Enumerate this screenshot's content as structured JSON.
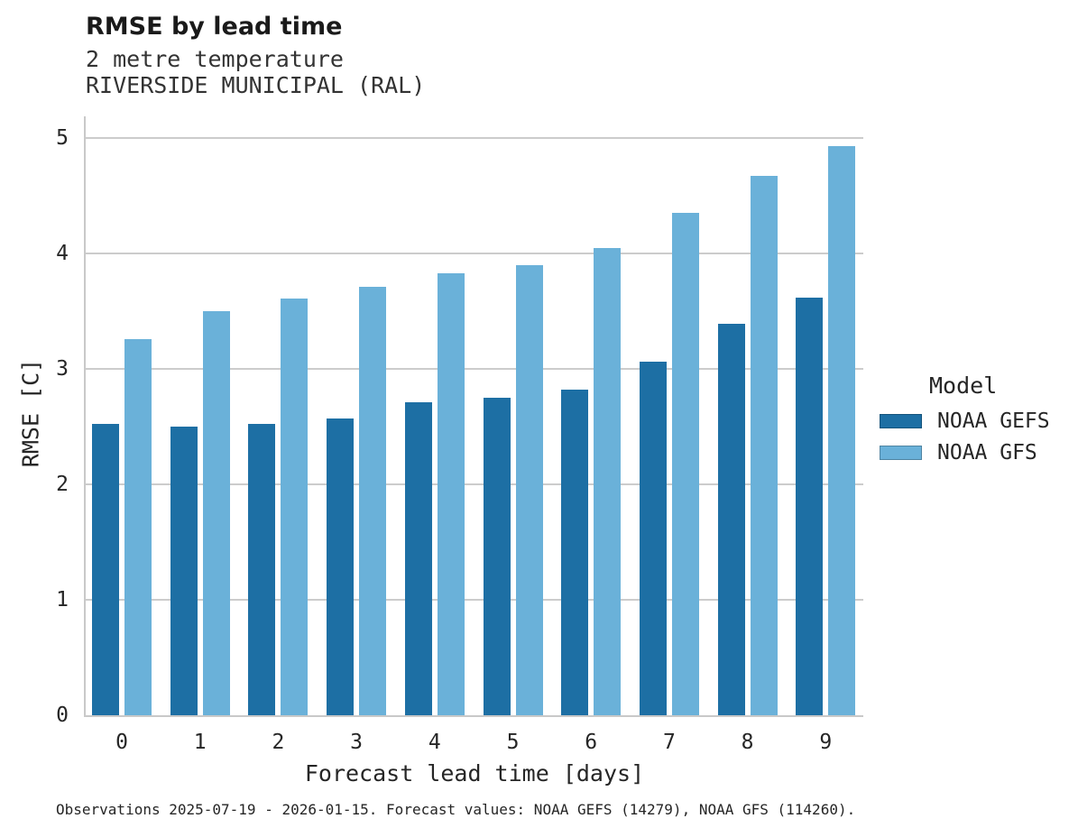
{
  "header": {
    "title": "RMSE by lead time",
    "subtitle1": "2 metre temperature",
    "subtitle2": "RIVERSIDE MUNICIPAL (RAL)"
  },
  "legend": {
    "title": "Model",
    "entries": [
      "NOAA GEFS",
      "NOAA GFS"
    ]
  },
  "caption": "Observations 2025-07-19 - 2026-01-15. Forecast values: NOAA GEFS (14279), NOAA GFS (114260).",
  "colors": {
    "gefs_dark_blue": "#1d6fa4",
    "gfs_light_blue": "#6ab1d9",
    "gridline_gray": "#cccccc",
    "text": "#262626"
  },
  "chart_data": {
    "type": "bar",
    "title": "RMSE by lead time",
    "subtitle": [
      "2 metre temperature",
      "RIVERSIDE MUNICIPAL (RAL)"
    ],
    "categories": [
      "0",
      "1",
      "2",
      "3",
      "4",
      "5",
      "6",
      "7",
      "8",
      "9"
    ],
    "series": [
      {
        "name": "NOAA GEFS",
        "color": "#1d6fa4",
        "values": [
          2.52,
          2.5,
          2.52,
          2.57,
          2.71,
          2.75,
          2.82,
          3.06,
          3.39,
          3.62
        ]
      },
      {
        "name": "NOAA GFS",
        "color": "#6ab1d9",
        "values": [
          3.26,
          3.5,
          3.61,
          3.71,
          3.83,
          3.9,
          4.05,
          4.35,
          4.67,
          4.93
        ]
      }
    ],
    "xlabel": "Forecast lead time [days]",
    "ylabel": "RMSE [C]",
    "ylim": [
      0,
      5
    ],
    "yticks": [
      0,
      1,
      2,
      3,
      4,
      5
    ],
    "grid": true,
    "legend_title": "Model",
    "legend_position": "right"
  }
}
